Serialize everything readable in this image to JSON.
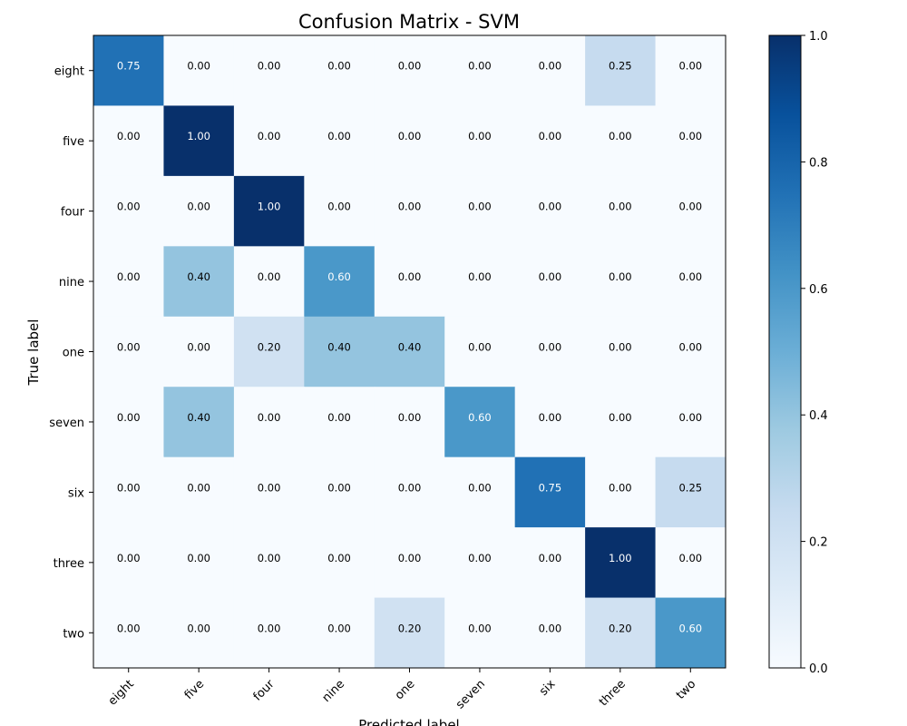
{
  "chart_data": {
    "type": "heatmap",
    "title": "Confusion Matrix - SVM",
    "xlabel": "Predicted label",
    "ylabel": "True label",
    "x_categories": [
      "eight",
      "five",
      "four",
      "nine",
      "one",
      "seven",
      "six",
      "three",
      "two"
    ],
    "y_categories": [
      "eight",
      "five",
      "four",
      "nine",
      "one",
      "seven",
      "six",
      "three",
      "two"
    ],
    "values": [
      [
        0.75,
        0.0,
        0.0,
        0.0,
        0.0,
        0.0,
        0.0,
        0.25,
        0.0
      ],
      [
        0.0,
        1.0,
        0.0,
        0.0,
        0.0,
        0.0,
        0.0,
        0.0,
        0.0
      ],
      [
        0.0,
        0.0,
        1.0,
        0.0,
        0.0,
        0.0,
        0.0,
        0.0,
        0.0
      ],
      [
        0.0,
        0.4,
        0.0,
        0.6,
        0.0,
        0.0,
        0.0,
        0.0,
        0.0
      ],
      [
        0.0,
        0.0,
        0.2,
        0.4,
        0.4,
        0.0,
        0.0,
        0.0,
        0.0
      ],
      [
        0.0,
        0.4,
        0.0,
        0.0,
        0.0,
        0.6,
        0.0,
        0.0,
        0.0
      ],
      [
        0.0,
        0.0,
        0.0,
        0.0,
        0.0,
        0.0,
        0.75,
        0.0,
        0.25
      ],
      [
        0.0,
        0.0,
        0.0,
        0.0,
        0.0,
        0.0,
        0.0,
        1.0,
        0.0
      ],
      [
        0.0,
        0.0,
        0.0,
        0.0,
        0.2,
        0.0,
        0.0,
        0.2,
        0.6
      ]
    ],
    "colormap": "Blues",
    "colorbar": {
      "range": [
        0.0,
        1.0
      ],
      "ticks": [
        "0.0",
        "0.2",
        "0.4",
        "0.6",
        "0.8",
        "1.0"
      ]
    },
    "value_format": "0.00",
    "text_color_dark": "#000000",
    "text_color_light": "#ffffff",
    "grid": false
  }
}
